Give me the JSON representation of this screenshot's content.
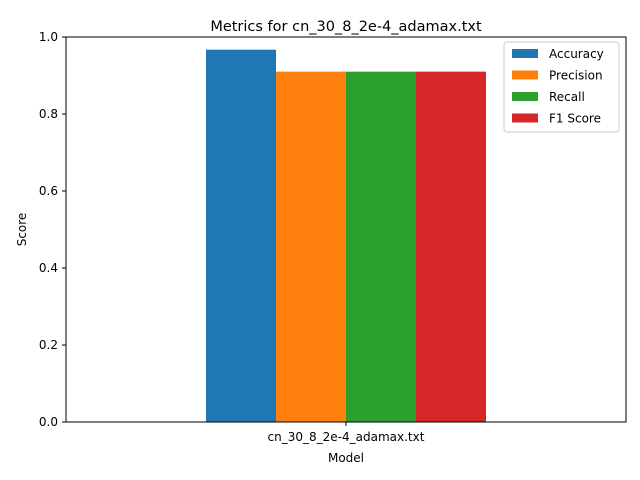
{
  "chart_data": {
    "type": "bar",
    "title": "Metrics for cn_30_8_2e-4_adamax.txt",
    "xlabel": "Model",
    "ylabel": "Score",
    "categories": [
      "cn_30_8_2e-4_adamax.txt"
    ],
    "ylim": [
      0,
      1.0
    ],
    "yticks": [
      "0.0",
      "0.2",
      "0.4",
      "0.6",
      "0.8",
      "1.0"
    ],
    "grid": false,
    "legend_position": "top-right",
    "series": [
      {
        "name": "Accuracy",
        "color": "#1f77b4",
        "values": [
          0.967
        ]
      },
      {
        "name": "Precision",
        "color": "#ff7f0e",
        "values": [
          0.91
        ]
      },
      {
        "name": "Recall",
        "color": "#2ca02c",
        "values": [
          0.91
        ]
      },
      {
        "name": "F1 Score",
        "color": "#d62728",
        "values": [
          0.91
        ]
      }
    ]
  }
}
